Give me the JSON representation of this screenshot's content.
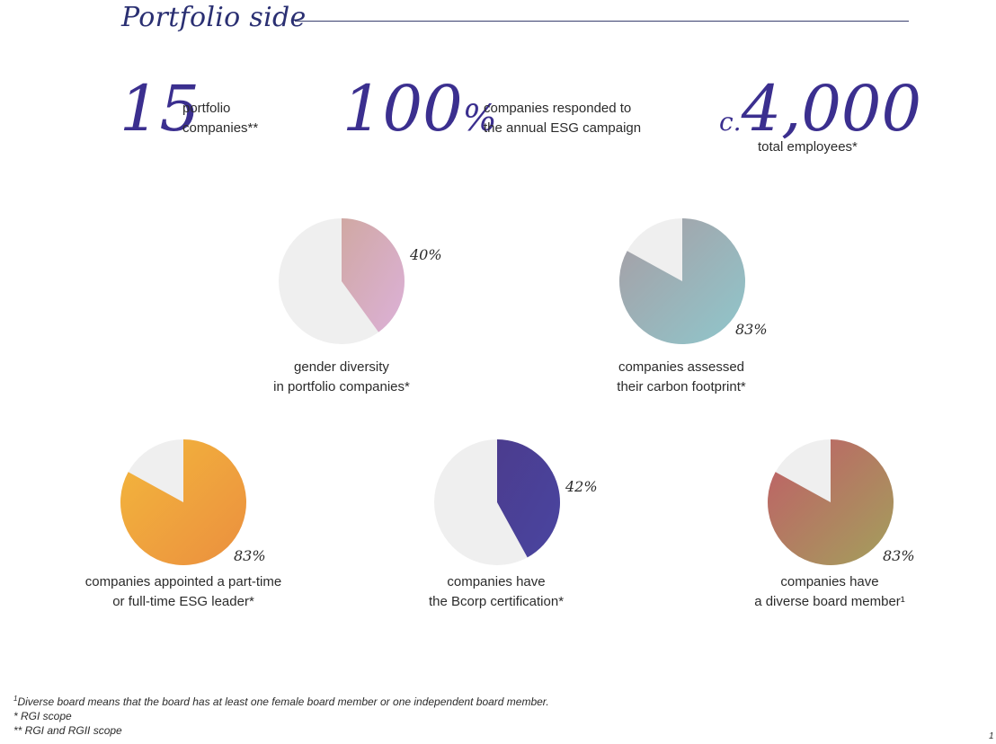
{
  "title": "Portfolio side",
  "stats": [
    {
      "number": "15",
      "text": [
        "portfolio",
        "companies**"
      ]
    },
    {
      "number": "100",
      "suffix": "%",
      "text": [
        "companies responded to",
        "the annual ESG campaign"
      ]
    },
    {
      "prefix": "c.",
      "number": "4,000",
      "text": [
        "total employees*"
      ]
    }
  ],
  "chart_data": [
    {
      "type": "pie",
      "value_percent": 40,
      "label": "40%",
      "caption": [
        "gender diversity",
        "in portfolio companies*"
      ],
      "colors": [
        "#d0a8a3",
        "#dcb1d8"
      ],
      "rest_color": "#efefef"
    },
    {
      "type": "pie",
      "value_percent": 83,
      "label": "83%",
      "caption": [
        "companies assessed",
        "their carbon footprint*"
      ],
      "colors": [
        "#a79da4",
        "#8fc7cc"
      ],
      "rest_color": "#efefef"
    },
    {
      "type": "pie",
      "value_percent": 83,
      "label": "83%",
      "caption": [
        "companies appointed a part-time",
        "or full-time ESG leader*"
      ],
      "colors": [
        "#f3b73c",
        "#eb8f3f"
      ],
      "rest_color": "#efefef"
    },
    {
      "type": "pie",
      "value_percent": 42,
      "label": "42%",
      "caption": [
        "companies have",
        "the Bcorp certification*"
      ],
      "colors": [
        "#4b3c8e",
        "#4a45a0"
      ],
      "rest_color": "#efefef"
    },
    {
      "type": "pie",
      "value_percent": 83,
      "label": "83%",
      "caption": [
        "companies have",
        "a diverse board member¹"
      ],
      "colors": [
        "#c05d67",
        "#a3a05c"
      ],
      "rest_color": "#efefef"
    }
  ],
  "footnotes": {
    "f1_mark": "1",
    "f1": "Diverse board means that the board has at least one female board member or one independent board member.",
    "f2": "* RGI scope",
    "f3": "** RGI and RGII scope"
  },
  "page_marker": "1"
}
